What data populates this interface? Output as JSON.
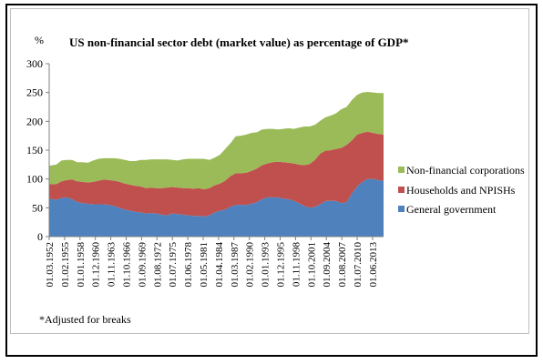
{
  "figure": {
    "unit_label": "%",
    "title": "US non-financial sector debt (market value) as percentage of GDP*",
    "footnote": "*Adjusted for breaks"
  },
  "chart_data": {
    "type": "area",
    "stacked": true,
    "title": "US non-financial sector debt (market value) as percentage of GDP*",
    "ylabel": "%",
    "ylim": [
      0,
      300
    ],
    "yticks": [
      0,
      50,
      100,
      150,
      200,
      250,
      300
    ],
    "grid": false,
    "legend_position": "right",
    "tick_labels": [
      "01.03.1952",
      "01.02.1955",
      "01.01.1958",
      "01.12.1960",
      "01.11.1963",
      "01.10.1966",
      "01.09.1969",
      "01.08.1972",
      "01.07.1975",
      "01.06.1978",
      "01.05.1981",
      "01.04.1984",
      "01.03.1987",
      "01.02.1990",
      "01.01.1993",
      "01.12.1995",
      "01.11.1998",
      "01.10.2001",
      "01.09.2004",
      "01.08.2007",
      "01.07.2010",
      "01.06.2013"
    ],
    "years": [
      1952,
      1953,
      1954,
      1955,
      1956,
      1957,
      1958,
      1959,
      1960,
      1961,
      1962,
      1963,
      1964,
      1965,
      1966,
      1967,
      1968,
      1969,
      1970,
      1971,
      1972,
      1973,
      1974,
      1975,
      1976,
      1977,
      1978,
      1979,
      1980,
      1981,
      1982,
      1983,
      1984,
      1985,
      1986,
      1987,
      1988,
      1989,
      1990,
      1991,
      1992,
      1993,
      1994,
      1995,
      1996,
      1997,
      1998,
      1999,
      2000,
      2001,
      2002,
      2003,
      2004,
      2005,
      2006,
      2007,
      2008,
      2009,
      2010,
      2011,
      2012,
      2013,
      2014,
      2015
    ],
    "series": [
      {
        "name": "General government",
        "color": "#4f81bd",
        "values": [
          66,
          64,
          67,
          68,
          65,
          60,
          58,
          57,
          56,
          56,
          56,
          55,
          53,
          50,
          47,
          45,
          43,
          42,
          40,
          41,
          40,
          38,
          37,
          40,
          39,
          38,
          37,
          36,
          36,
          35,
          37,
          42,
          45,
          47,
          52,
          55,
          55,
          55,
          57,
          60,
          65,
          68,
          68,
          68,
          66,
          65,
          62,
          58,
          53,
          50,
          52,
          56,
          62,
          62,
          62,
          58,
          60,
          75,
          87,
          95,
          100,
          100,
          98,
          97
        ]
      },
      {
        "name": "Households and NPISHs",
        "color": "#c0504d",
        "values": [
          25,
          27,
          29,
          30,
          34,
          36,
          37,
          37,
          39,
          41,
          43,
          43,
          44,
          45,
          45,
          45,
          45,
          45,
          44,
          44,
          44,
          46,
          48,
          46,
          46,
          46,
          47,
          47,
          48,
          47,
          47,
          47,
          47,
          50,
          53,
          55,
          55,
          56,
          57,
          58,
          59,
          59,
          61,
          62,
          63,
          63,
          65,
          67,
          71,
          76,
          81,
          88,
          87,
          88,
          90,
          96,
          99,
          92,
          90,
          85,
          82,
          80,
          80,
          80
        ]
      },
      {
        "name": "Non-financial corporations",
        "color": "#9bbb59",
        "values": [
          32,
          34,
          36,
          35,
          34,
          33,
          34,
          34,
          37,
          38,
          37,
          38,
          39,
          40,
          41,
          41,
          43,
          46,
          49,
          49,
          50,
          50,
          49,
          47,
          47,
          50,
          51,
          52,
          51,
          53,
          49,
          48,
          50,
          55,
          57,
          64,
          65,
          66,
          66,
          63,
          62,
          60,
          58,
          56,
          58,
          60,
          60,
          64,
          67,
          65,
          61,
          57,
          58,
          60,
          62,
          67,
          66,
          70,
          69,
          70,
          69,
          70,
          71,
          72
        ]
      }
    ]
  }
}
